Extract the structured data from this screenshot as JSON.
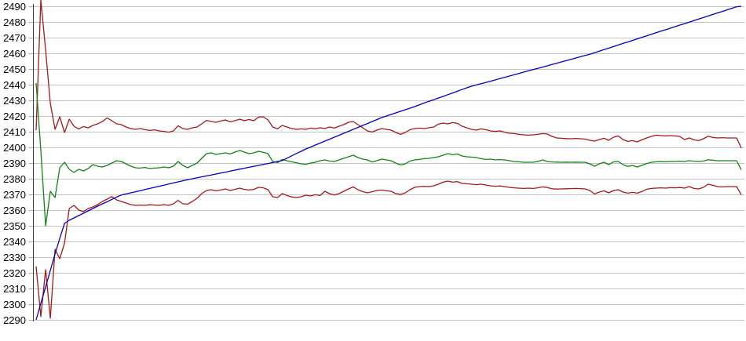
{
  "chart_data": {
    "type": "line",
    "title": "",
    "xlabel": "",
    "ylabel": "",
    "legend": "none",
    "grid": "horizontal-gridlines-every-10",
    "ylim": [
      2290,
      2490
    ],
    "ytick_step": 10,
    "yticks": [
      2490,
      2480,
      2470,
      2460,
      2450,
      2440,
      2430,
      2420,
      2410,
      2400,
      2390,
      2380,
      2370,
      2360,
      2350,
      2340,
      2330,
      2320,
      2310,
      2300,
      2290
    ],
    "x_axis": {
      "labels_visible": false,
      "n_points": 150,
      "note": "no x tick labels shown; series sampled at even spacing"
    },
    "series": [
      {
        "name": "red-upper-band",
        "color": "#a51919",
        "values": [
          2411,
          2494,
          2462,
          2428,
          2411.5,
          2419.5,
          2409.5,
          2418,
          2413.5,
          2411.7,
          2413.3,
          2412.5,
          2414,
          2415,
          2416.5,
          2418.8,
          2417,
          2415,
          2414.5,
          2413,
          2412,
          2411.5,
          2412,
          2411.3,
          2410.8,
          2411.2,
          2410.5,
          2410.2,
          2409.7,
          2410.5,
          2413.8,
          2412,
          2411.5,
          2412.5,
          2413,
          2415,
          2417.2,
          2416.5,
          2416,
          2416.8,
          2417.5,
          2416.3,
          2417,
          2418,
          2417,
          2417.8,
          2417,
          2419.3,
          2419.5,
          2417.5,
          2413,
          2411.8,
          2414,
          2413,
          2412,
          2411.5,
          2411.8,
          2411.5,
          2412.3,
          2411.8,
          2412.5,
          2412,
          2413,
          2412.3,
          2413.5,
          2414.5,
          2416,
          2416.5,
          2414.5,
          2412.5,
          2410.5,
          2409.8,
          2411,
          2412,
          2411.5,
          2411,
          2409.5,
          2408.3,
          2409.5,
          2411.3,
          2412,
          2412.3,
          2412,
          2412.5,
          2413,
          2414.8,
          2415.5,
          2415,
          2415.8,
          2415.3,
          2413.5,
          2412.5,
          2411.5,
          2411,
          2411.8,
          2411.3,
          2410.5,
          2410.2,
          2410.5,
          2409.7,
          2409,
          2408.8,
          2408.3,
          2408,
          2407.8,
          2408,
          2408.3,
          2408.8,
          2408.5,
          2407,
          2406,
          2405.8,
          2405.6,
          2405.5,
          2405.7,
          2405.5,
          2405.3,
          2404.5,
          2404,
          2405,
          2405.8,
          2404.5,
          2406.5,
          2407.3,
          2405,
          2403.8,
          2404.3,
          2403.5,
          2404.8,
          2406,
          2407,
          2407.8,
          2407.5,
          2407.3,
          2407.5,
          2407.3,
          2407,
          2405,
          2406,
          2404.8,
          2404.3,
          2405.5,
          2407.1,
          2406.3,
          2406,
          2406.2,
          2406,
          2406,
          2406,
          2399.6
        ]
      },
      {
        "name": "green-middle",
        "color": "#148219",
        "values": [
          2441,
          2398,
          2350,
          2372,
          2368,
          2387,
          2390.5,
          2386,
          2384,
          2386,
          2385,
          2386.5,
          2389,
          2388,
          2387.5,
          2388.5,
          2390,
          2391.5,
          2391,
          2389.5,
          2388,
          2387,
          2386.8,
          2387.2,
          2386.5,
          2386.8,
          2387,
          2387.5,
          2387,
          2388,
          2391,
          2388.5,
          2387,
          2388.5,
          2390,
          2393,
          2396,
          2396.5,
          2395.5,
          2396,
          2396.5,
          2395.8,
          2397,
          2398,
          2397,
          2396,
          2396.5,
          2397.5,
          2396.8,
          2396,
          2391,
          2390.3,
          2392.3,
          2391.5,
          2390.8,
          2390.2,
          2389.5,
          2389.2,
          2390,
          2390.5,
          2391.5,
          2392,
          2391.3,
          2391,
          2392,
          2393,
          2394,
          2395,
          2393.5,
          2392.5,
          2392,
          2390.7,
          2391.5,
          2392.5,
          2392,
          2391.5,
          2390,
          2388.8,
          2389.5,
          2391.3,
          2392,
          2392.3,
          2392.8,
          2393,
          2393.5,
          2394,
          2395,
          2396,
          2395.3,
          2395.8,
          2394.5,
          2394,
          2393.8,
          2393.5,
          2392.8,
          2392.3,
          2392.5,
          2392,
          2392.2,
          2392,
          2391.5,
          2391,
          2390.8,
          2390.5,
          2390.5,
          2390.5,
          2391,
          2392,
          2391,
          2390.7,
          2390.6,
          2390.5,
          2390.6,
          2390.5,
          2390.6,
          2390.5,
          2390.5,
          2389.5,
          2388,
          2389.5,
          2390.5,
          2389,
          2390.8,
          2391,
          2389,
          2387.8,
          2388.5,
          2387.5,
          2388.5,
          2389.7,
          2390.5,
          2390.8,
          2391,
          2390.8,
          2391,
          2391,
          2391.2,
          2391,
          2391.5,
          2391.2,
          2391,
          2391.3,
          2392.1,
          2391.8,
          2391.5,
          2391.5,
          2391.5,
          2391.5,
          2391.5,
          2385.7
        ]
      },
      {
        "name": "red-lower-band",
        "color": "#a51919",
        "values": [
          2324,
          2292,
          2322,
          2291,
          2335,
          2329,
          2339,
          2361,
          2363,
          2360,
          2359,
          2361,
          2362,
          2363.5,
          2365.5,
          2367,
          2368.6,
          2366.5,
          2365.5,
          2364.5,
          2363.5,
          2363,
          2363.2,
          2363,
          2363.4,
          2363.2,
          2363,
          2363.5,
          2363,
          2364,
          2366.2,
          2364,
          2363.8,
          2365.5,
          2367.5,
          2370.5,
          2372.5,
          2373,
          2372.3,
          2372.8,
          2373.5,
          2372.5,
          2373.2,
          2374,
          2373.2,
          2372.8,
          2373.2,
          2374.5,
          2374.2,
          2373,
          2368.5,
          2368,
          2370.5,
          2369.3,
          2368.4,
          2368,
          2368.5,
          2369.5,
          2369,
          2369.8,
          2369.3,
          2372,
          2370.5,
          2369.6,
          2370.5,
          2372,
          2373.5,
          2374.8,
          2373,
          2371.8,
          2371,
          2371.7,
          2372.5,
          2372.8,
          2372.3,
          2372,
          2370.5,
          2370,
          2371,
          2373,
          2374.5,
          2375,
          2375.2,
          2375,
          2375.5,
          2376.5,
          2377.8,
          2378.5,
          2377.8,
          2378.2,
          2377,
          2376.8,
          2376.5,
          2376.2,
          2376.5,
          2376,
          2375.5,
          2375.2,
          2375.4,
          2375,
          2374.5,
          2374.2,
          2374,
          2373.8,
          2374,
          2373.8,
          2374.2,
          2374.8,
          2374.4,
          2373.6,
          2373.4,
          2373.5,
          2373.6,
          2373.7,
          2373.8,
          2373.7,
          2373.5,
          2372.5,
          2370.3,
          2371.5,
          2372.3,
          2371,
          2372.5,
          2373,
          2371.5,
          2370.8,
          2371.3,
          2370.8,
          2371.8,
          2373.3,
          2373.8,
          2374,
          2374.2,
          2374,
          2374.3,
          2374.2,
          2374.4,
          2374,
          2375,
          2373.8,
          2373.5,
          2374.5,
          2376.5,
          2375.8,
          2375,
          2374.8,
          2375,
          2375,
          2375,
          2369.8
        ]
      },
      {
        "name": "blue-rising",
        "color": "#0000b8",
        "values": [
          2290,
          2300.5,
          2311,
          2321.5,
          2332,
          2342,
          2351.5,
          2353.5,
          2355,
          2356.5,
          2358,
          2359.5,
          2361,
          2362.5,
          2364,
          2365.3,
          2366.8,
          2368.3,
          2369.6,
          2370.3,
          2371,
          2371.7,
          2372.4,
          2373.1,
          2373.8,
          2374.5,
          2375.2,
          2375.9,
          2376.6,
          2377.3,
          2378,
          2378.7,
          2379.4,
          2380,
          2380.6,
          2381.2,
          2381.8,
          2382.4,
          2383,
          2383.6,
          2384.2,
          2384.9,
          2385.5,
          2386.1,
          2386.7,
          2387.3,
          2387.9,
          2388.5,
          2389.1,
          2389.7,
          2390.3,
          2391,
          2391.6,
          2393.1,
          2394.6,
          2396.1,
          2397.5,
          2399,
          2400.2,
          2401.5,
          2402.7,
          2404,
          2405.2,
          2406.5,
          2407.7,
          2409,
          2410.2,
          2411.5,
          2412.7,
          2414,
          2415.2,
          2416.5,
          2417.7,
          2419,
          2420,
          2421,
          2422,
          2423,
          2424,
          2425,
          2426,
          2427.2,
          2428.3,
          2429.4,
          2430.4,
          2431.5,
          2432.5,
          2433.6,
          2434.7,
          2435.8,
          2436.9,
          2438,
          2439,
          2439.8,
          2440.6,
          2441.4,
          2442.2,
          2443,
          2443.9,
          2444.7,
          2445.5,
          2446.3,
          2447.1,
          2448,
          2448.8,
          2449.6,
          2450.4,
          2451.2,
          2452,
          2452.9,
          2453.7,
          2454.5,
          2455.3,
          2456.1,
          2457,
          2457.8,
          2458.6,
          2459.4,
          2460.4,
          2461.4,
          2462.4,
          2463.3,
          2464.3,
          2465.3,
          2466.3,
          2467.2,
          2468.2,
          2469.2,
          2470.2,
          2471.1,
          2472.1,
          2473.1,
          2474.1,
          2475,
          2476,
          2477,
          2478,
          2478.9,
          2479.9,
          2480.9,
          2481.9,
          2482.8,
          2483.8,
          2484.8,
          2485.8,
          2486.7,
          2487.7,
          2488.7,
          2489.7,
          2490
        ]
      }
    ]
  },
  "colors": {
    "background": "#ffffff",
    "gridline": "#c3c3c3",
    "axis_line": "#3f3f3f",
    "tick": "#ababab",
    "label_text": "#000000"
  }
}
